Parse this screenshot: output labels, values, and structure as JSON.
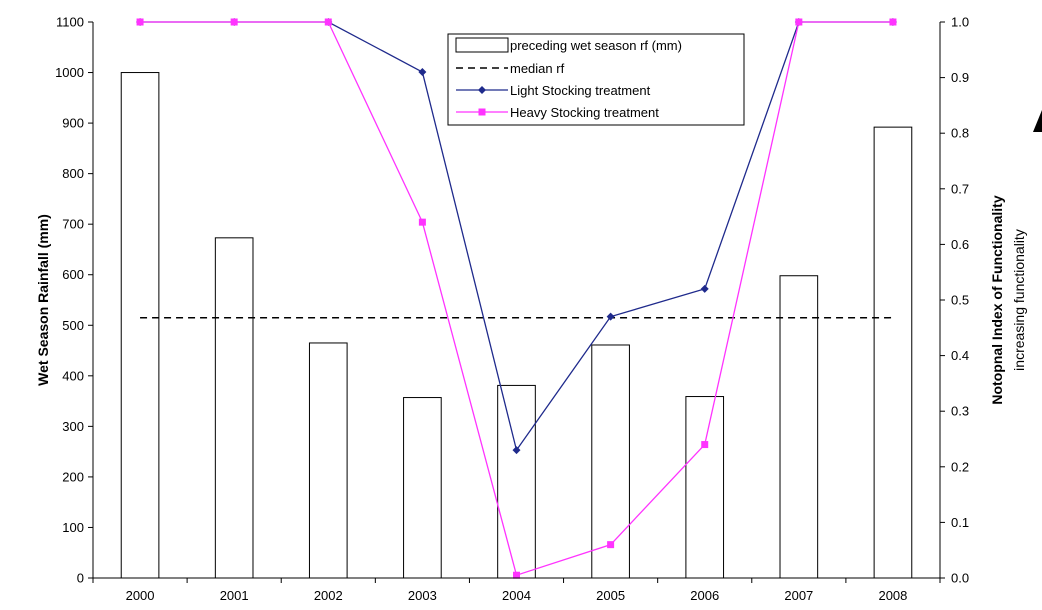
{
  "chart_data": {
    "type": "bar",
    "categories": [
      "2000",
      "2001",
      "2002",
      "2003",
      "2004",
      "2005",
      "2006",
      "2007",
      "2008"
    ],
    "ylabel": "Wet Season Rainfall (mm)",
    "y2label": "Notopnal Index of Functionality",
    "y2label_sub": "increasing functionality",
    "ylim": [
      0,
      1100
    ],
    "y2lim": [
      0,
      1.0
    ],
    "yticks": [
      "0",
      "100",
      "200",
      "300",
      "400",
      "500",
      "600",
      "700",
      "800",
      "900",
      "1000",
      "1100"
    ],
    "y2ticks": [
      "0.0",
      "0.1",
      "0.2",
      "0.3",
      "0.4",
      "0.5",
      "0.6",
      "0.7",
      "0.8",
      "0.9",
      "1.0"
    ],
    "grid": false,
    "legend_position": "top-center",
    "bars": {
      "name": "preceding wet season rf (mm)",
      "values": [
        1000,
        673,
        465,
        357,
        381,
        461,
        359,
        598,
        892
      ]
    },
    "median": {
      "name": "median rf",
      "value": 515
    },
    "series": [
      {
        "name": "Light Stocking treatment",
        "color": "#1f2a8c",
        "marker": "diamond",
        "values": [
          1.0,
          1.0,
          1.0,
          0.91,
          0.23,
          0.47,
          0.52,
          1.0,
          1.0
        ]
      },
      {
        "name": "Heavy Stocking treatment",
        "color": "#ff33ff",
        "marker": "square",
        "values": [
          1.0,
          1.0,
          1.0,
          0.64,
          0.005,
          0.06,
          0.24,
          1.0,
          1.0
        ]
      }
    ]
  }
}
